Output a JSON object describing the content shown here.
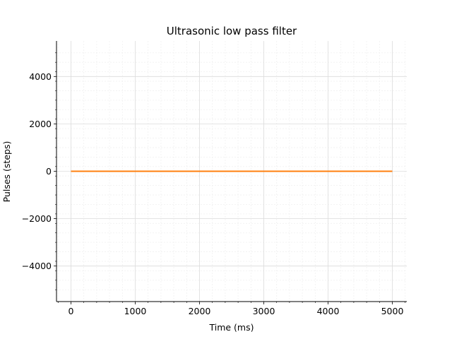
{
  "chart_data": {
    "type": "line",
    "title": "Ultrasonic low pass filter",
    "xlabel": "Time (ms)",
    "ylabel": "Pulses (steps)",
    "xlim": [
      -225,
      5225
    ],
    "ylim": [
      -5500,
      5500
    ],
    "xticks": [
      0,
      1000,
      2000,
      3000,
      4000,
      5000
    ],
    "xtick_labels": [
      "0",
      "1000",
      "2000",
      "3000",
      "4000",
      "5000"
    ],
    "yticks": [
      -4000,
      -2000,
      0,
      2000,
      4000
    ],
    "ytick_labels": [
      "−4000",
      "−2000",
      "0",
      "2000",
      "4000"
    ],
    "grid": true,
    "minor_grid": true,
    "series": [
      {
        "color": "#ff7f0e",
        "x": [
          0,
          1000,
          2000,
          3000,
          4000,
          5000
        ],
        "values": [
          0,
          0,
          0,
          0,
          0,
          0
        ]
      }
    ]
  }
}
